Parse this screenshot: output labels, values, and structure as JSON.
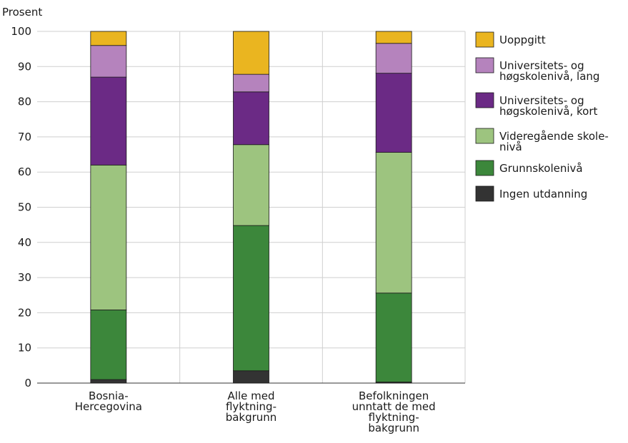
{
  "chart_data": {
    "type": "bar",
    "stacked": true,
    "ylabel": "Prosent",
    "ylim": [
      0,
      100
    ],
    "yticks": [
      0,
      10,
      20,
      30,
      40,
      50,
      60,
      70,
      80,
      90,
      100
    ],
    "grid": true,
    "legend_position": "right",
    "categories": [
      [
        "Bosnia-",
        "Hercegovina"
      ],
      [
        "Alle med",
        "flyktning-",
        "bakgrunn"
      ],
      [
        "Befolkningen",
        "unntatt de med",
        "flyktning-",
        "bakgrunn"
      ]
    ],
    "series": [
      {
        "name": "Ingen utdanning",
        "color": "#333333",
        "values": [
          1,
          3.5,
          0.3
        ]
      },
      {
        "name": "Grunnskolenivå",
        "color": "#3c873b",
        "values": [
          19.8,
          41.3,
          25.3
        ]
      },
      {
        "name": "Videregående skolenivå",
        "legend_lines": [
          "Videregående skole-",
          "nivå"
        ],
        "color": "#9dc47f",
        "values": [
          41.2,
          23,
          40
        ]
      },
      {
        "name": "Universitets- og høgskolenivå, kort",
        "legend_lines": [
          "Universitets- og",
          "høgskolenivå, kort"
        ],
        "color": "#6b2a85",
        "values": [
          25,
          15,
          22.5
        ]
      },
      {
        "name": "Universitets- og høgskolenivå, lang",
        "legend_lines": [
          "Universitets- og",
          "høgskolenivå, lang"
        ],
        "color": "#b583bd",
        "values": [
          9,
          5,
          8.5
        ]
      },
      {
        "name": "Uoppgitt",
        "color": "#eab520",
        "values": [
          4,
          12.2,
          3.4
        ]
      }
    ]
  }
}
